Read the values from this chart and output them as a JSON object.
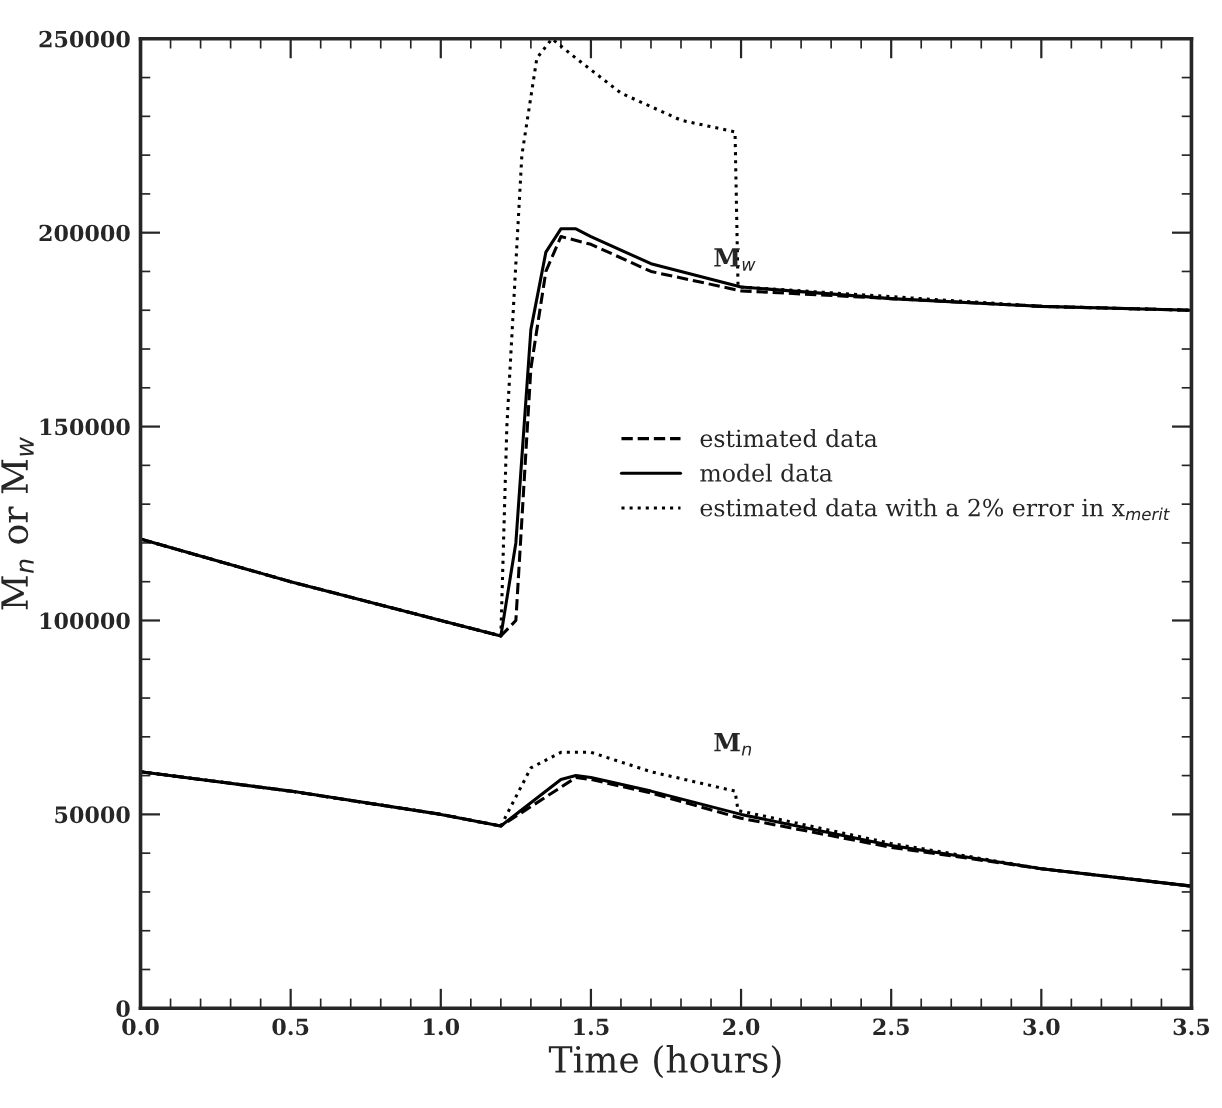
{
  "chart_data": {
    "type": "line",
    "xlabel": "Time (hours)",
    "ylabel": "M$_{n}$ or M$_{w}$",
    "xlim": [
      0,
      3.5
    ],
    "xticks": [
      {
        "value": 0,
        "label": "0.0"
      },
      0.5,
      {
        "value": 1,
        "label": "1.0"
      },
      1.5,
      {
        "value": 2,
        "label": "2.0"
      },
      2.5,
      {
        "value": 3,
        "label": "3.0"
      },
      3.5
    ],
    "ylim": [
      0,
      250000
    ],
    "yticks": [
      0,
      50000,
      100000,
      150000,
      200000,
      250000
    ],
    "grid": false,
    "legend": "right",
    "marker": "none",
    "annotations": [
      "M$_{w}$",
      "M$_{n}$"
    ],
    "series": [
      {
        "name": "estimated data",
        "color": "#000000",
        "line_style": "dashed",
        "x": [
          0,
          0.5,
          1.0,
          1.2,
          1.25,
          1.3,
          1.35,
          1.4,
          1.5,
          1.7,
          2.0,
          2.5,
          3.0,
          3.5
        ],
        "values": [
          121000,
          110000,
          100000,
          96000,
          100000,
          165000,
          190000,
          199000,
          197000,
          190000,
          185000,
          183000,
          181000,
          180000
        ]
      },
      {
        "name": "model data",
        "color": "#000000",
        "line_style": "solid",
        "x": [
          0,
          0.5,
          1.0,
          1.2,
          1.25,
          1.3,
          1.35,
          1.4,
          1.45,
          1.5,
          1.7,
          2.0,
          2.5,
          3.0,
          3.5
        ],
        "values": [
          121000,
          110000,
          100000,
          96000,
          120000,
          175000,
          195000,
          201000,
          201000,
          199000,
          192000,
          186000,
          183000,
          181000,
          180000
        ]
      },
      {
        "name": "estimated data with a 2% error in x$_{merit}$",
        "color": "#000000",
        "line_style": "dotted",
        "x": [
          0,
          0.5,
          1.0,
          1.2,
          1.22,
          1.27,
          1.32,
          1.37,
          1.45,
          1.6,
          1.8,
          1.98,
          1.99,
          2.2,
          2.5,
          3.0,
          3.5
        ],
        "values": [
          121000,
          110000,
          100000,
          96000,
          150000,
          220000,
          245000,
          250000,
          245000,
          236000,
          229000,
          226000,
          186000,
          185000,
          183500,
          181000,
          180000
        ]
      },
      {
        "color": "#000000",
        "line_style": "dashed",
        "x": [
          0,
          0.5,
          1.0,
          1.2,
          1.3,
          1.45,
          1.5,
          1.7,
          2.0,
          2.5,
          3.0,
          3.5
        ],
        "values": [
          61000,
          56000,
          50000,
          47000,
          52000,
          59500,
          59000,
          55500,
          49000,
          41500,
          36000,
          31500
        ]
      },
      {
        "color": "#000000",
        "line_style": "solid",
        "x": [
          0,
          0.5,
          1.0,
          1.2,
          1.3,
          1.4,
          1.45,
          1.5,
          1.7,
          2.0,
          2.5,
          3.0,
          3.5
        ],
        "values": [
          61000,
          56000,
          50000,
          47000,
          53000,
          59000,
          60000,
          59500,
          56000,
          50000,
          42000,
          36000,
          31500
        ]
      },
      {
        "color": "#000000",
        "line_style": "dotted",
        "x": [
          0,
          0.5,
          1.0,
          1.2,
          1.3,
          1.4,
          1.5,
          1.7,
          1.98,
          1.99,
          2.5,
          3.0,
          3.5
        ],
        "values": [
          61000,
          56000,
          50000,
          47000,
          62000,
          66000,
          66000,
          61000,
          56000,
          51000,
          42500,
          36000,
          31500
        ]
      }
    ]
  }
}
